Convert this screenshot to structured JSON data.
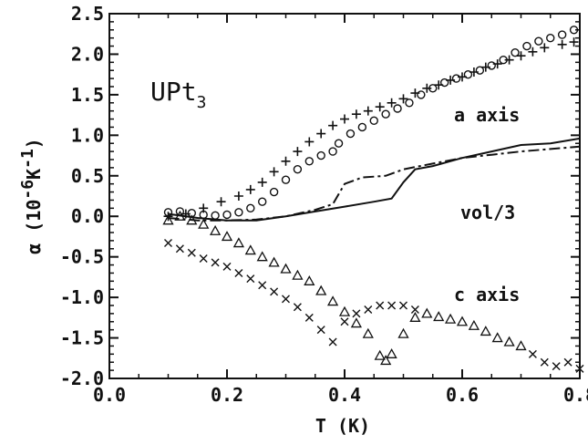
{
  "chart_data": {
    "type": "scatter",
    "xlabel": "T (K)",
    "ylabel": {
      "base": "α (10",
      "exp1": "-6",
      "mid": "K",
      "exp2": "-1",
      "end": ")"
    },
    "xlim": [
      0.0,
      0.8
    ],
    "ylim": [
      -2.0,
      2.5
    ],
    "x_ticks": [
      "0.0",
      "0.2",
      "0.4",
      "0.6",
      "0.8"
    ],
    "y_ticks": [
      "2.5",
      "2.0",
      "1.5",
      "1.0",
      "0.5",
      "0.0",
      "-0.5",
      "-1.0",
      "-1.5",
      "-2.0"
    ],
    "annotations": {
      "sample": {
        "main": "UPt",
        "sub": "3"
      },
      "a_axis": "a axis",
      "vol": "vol/3",
      "c_axis": "c axis"
    },
    "series": [
      {
        "marker": "circle",
        "points": [
          [
            0.1,
            0.05
          ],
          [
            0.12,
            0.06
          ],
          [
            0.14,
            0.04
          ],
          [
            0.16,
            0.02
          ],
          [
            0.18,
            0.01
          ],
          [
            0.2,
            0.02
          ],
          [
            0.22,
            0.05
          ],
          [
            0.24,
            0.1
          ],
          [
            0.26,
            0.18
          ],
          [
            0.28,
            0.3
          ],
          [
            0.3,
            0.45
          ],
          [
            0.32,
            0.58
          ],
          [
            0.34,
            0.68
          ],
          [
            0.36,
            0.75
          ],
          [
            0.38,
            0.8
          ],
          [
            0.39,
            0.9
          ],
          [
            0.41,
            1.02
          ],
          [
            0.43,
            1.1
          ],
          [
            0.45,
            1.18
          ],
          [
            0.47,
            1.26
          ],
          [
            0.49,
            1.33
          ],
          [
            0.51,
            1.4
          ],
          [
            0.53,
            1.5
          ],
          [
            0.55,
            1.58
          ],
          [
            0.57,
            1.65
          ],
          [
            0.59,
            1.7
          ],
          [
            0.61,
            1.75
          ],
          [
            0.63,
            1.8
          ],
          [
            0.65,
            1.86
          ],
          [
            0.67,
            1.93
          ],
          [
            0.69,
            2.02
          ],
          [
            0.71,
            2.1
          ],
          [
            0.73,
            2.16
          ],
          [
            0.75,
            2.2
          ],
          [
            0.77,
            2.24
          ],
          [
            0.79,
            2.3
          ]
        ]
      },
      {
        "marker": "plus",
        "points": [
          [
            0.1,
            0.0
          ],
          [
            0.13,
            0.03
          ],
          [
            0.16,
            0.1
          ],
          [
            0.19,
            0.18
          ],
          [
            0.22,
            0.25
          ],
          [
            0.24,
            0.33
          ],
          [
            0.26,
            0.42
          ],
          [
            0.28,
            0.55
          ],
          [
            0.3,
            0.68
          ],
          [
            0.32,
            0.8
          ],
          [
            0.34,
            0.92
          ],
          [
            0.36,
            1.02
          ],
          [
            0.38,
            1.12
          ],
          [
            0.4,
            1.2
          ],
          [
            0.42,
            1.26
          ],
          [
            0.44,
            1.3
          ],
          [
            0.46,
            1.35
          ],
          [
            0.48,
            1.4
          ],
          [
            0.5,
            1.45
          ],
          [
            0.52,
            1.52
          ],
          [
            0.54,
            1.58
          ],
          [
            0.56,
            1.62
          ],
          [
            0.58,
            1.68
          ],
          [
            0.6,
            1.72
          ],
          [
            0.62,
            1.78
          ],
          [
            0.64,
            1.84
          ],
          [
            0.66,
            1.88
          ],
          [
            0.68,
            1.93
          ],
          [
            0.7,
            1.98
          ],
          [
            0.72,
            2.03
          ],
          [
            0.74,
            2.08
          ],
          [
            0.77,
            2.12
          ],
          [
            0.79,
            2.15
          ]
        ]
      },
      {
        "marker": "triangle",
        "points": [
          [
            0.1,
            -0.05
          ],
          [
            0.12,
            0.0
          ],
          [
            0.14,
            -0.05
          ],
          [
            0.16,
            -0.1
          ],
          [
            0.18,
            -0.18
          ],
          [
            0.2,
            -0.25
          ],
          [
            0.22,
            -0.33
          ],
          [
            0.24,
            -0.42
          ],
          [
            0.26,
            -0.5
          ],
          [
            0.28,
            -0.57
          ],
          [
            0.3,
            -0.65
          ],
          [
            0.32,
            -0.73
          ],
          [
            0.34,
            -0.8
          ],
          [
            0.36,
            -0.92
          ],
          [
            0.38,
            -1.05
          ],
          [
            0.4,
            -1.18
          ],
          [
            0.42,
            -1.32
          ],
          [
            0.44,
            -1.45
          ],
          [
            0.46,
            -1.72
          ],
          [
            0.47,
            -1.78
          ],
          [
            0.48,
            -1.7
          ],
          [
            0.5,
            -1.45
          ],
          [
            0.52,
            -1.25
          ],
          [
            0.54,
            -1.2
          ],
          [
            0.56,
            -1.24
          ],
          [
            0.58,
            -1.27
          ],
          [
            0.6,
            -1.3
          ],
          [
            0.62,
            -1.35
          ],
          [
            0.64,
            -1.42
          ],
          [
            0.66,
            -1.5
          ],
          [
            0.68,
            -1.55
          ],
          [
            0.7,
            -1.6
          ]
        ]
      },
      {
        "marker": "cross",
        "points": [
          [
            0.1,
            -0.33
          ],
          [
            0.12,
            -0.4
          ],
          [
            0.14,
            -0.45
          ],
          [
            0.16,
            -0.52
          ],
          [
            0.18,
            -0.57
          ],
          [
            0.2,
            -0.62
          ],
          [
            0.22,
            -0.7
          ],
          [
            0.24,
            -0.77
          ],
          [
            0.26,
            -0.85
          ],
          [
            0.28,
            -0.93
          ],
          [
            0.3,
            -1.02
          ],
          [
            0.32,
            -1.12
          ],
          [
            0.34,
            -1.25
          ],
          [
            0.36,
            -1.4
          ],
          [
            0.38,
            -1.55
          ],
          [
            0.4,
            -1.3
          ],
          [
            0.42,
            -1.2
          ],
          [
            0.44,
            -1.15
          ],
          [
            0.46,
            -1.1
          ],
          [
            0.48,
            -1.1
          ],
          [
            0.5,
            -1.1
          ],
          [
            0.52,
            -1.15
          ],
          [
            0.72,
            -1.7
          ],
          [
            0.74,
            -1.8
          ],
          [
            0.76,
            -1.85
          ],
          [
            0.78,
            -1.8
          ],
          [
            0.8,
            -1.88
          ]
        ]
      },
      {
        "style": "solid",
        "points": [
          [
            0.1,
            0.03
          ],
          [
            0.15,
            -0.02
          ],
          [
            0.2,
            -0.05
          ],
          [
            0.25,
            -0.05
          ],
          [
            0.3,
            0.0
          ],
          [
            0.35,
            0.06
          ],
          [
            0.4,
            0.12
          ],
          [
            0.45,
            0.18
          ],
          [
            0.48,
            0.22
          ],
          [
            0.5,
            0.42
          ],
          [
            0.52,
            0.58
          ],
          [
            0.55,
            0.62
          ],
          [
            0.6,
            0.72
          ],
          [
            0.65,
            0.8
          ],
          [
            0.7,
            0.88
          ],
          [
            0.75,
            0.9
          ],
          [
            0.8,
            0.96
          ]
        ]
      },
      {
        "style": "dashdot",
        "points": [
          [
            0.1,
            -0.02
          ],
          [
            0.15,
            -0.05
          ],
          [
            0.2,
            -0.05
          ],
          [
            0.25,
            -0.04
          ],
          [
            0.3,
            0.0
          ],
          [
            0.35,
            0.08
          ],
          [
            0.38,
            0.15
          ],
          [
            0.4,
            0.4
          ],
          [
            0.43,
            0.48
          ],
          [
            0.47,
            0.5
          ],
          [
            0.5,
            0.58
          ],
          [
            0.55,
            0.65
          ],
          [
            0.6,
            0.72
          ],
          [
            0.65,
            0.76
          ],
          [
            0.7,
            0.8
          ],
          [
            0.75,
            0.83
          ],
          [
            0.8,
            0.86
          ]
        ]
      }
    ],
    "grid": false,
    "legend": "none"
  }
}
